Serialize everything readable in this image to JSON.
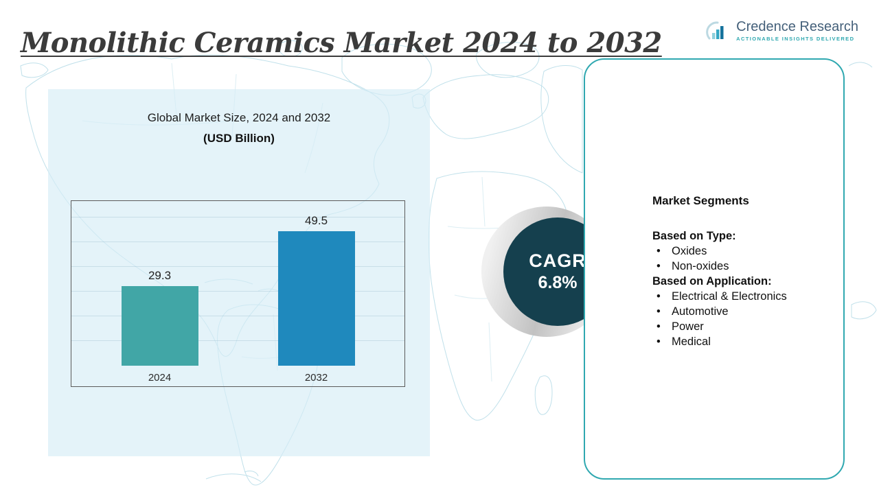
{
  "header": {
    "title": "Monolithic Ceramics Market 2024 to 2032",
    "brand": {
      "name": "Credence Research",
      "tagline": "Actionable Insights Delivered"
    }
  },
  "chart_data": {
    "type": "bar",
    "title": "Global Market Size, 2024 and 2032",
    "subtitle": "(USD Billion)",
    "categories": [
      "2024",
      "2032"
    ],
    "values": [
      29.3,
      49.5
    ],
    "ylim": [
      0,
      55
    ],
    "grid": true,
    "legend": false,
    "bar_colors": [
      "#41a6a6",
      "#1f89bd"
    ]
  },
  "cagr": {
    "label": "CAGR",
    "value": "6.8%"
  },
  "segments": {
    "heading": "Market Segments",
    "groups": [
      {
        "title": "Based on Type:",
        "items": [
          "Oxides",
          "Non-oxides"
        ]
      },
      {
        "title": "Based on Application:",
        "items": [
          "Electrical & Electronics",
          "Automotive",
          "Power",
          "Medical"
        ]
      }
    ]
  },
  "colors": {
    "accent_teal": "#2fa8b0",
    "bar_2024": "#41a6a6",
    "bar_2032": "#1f89bd",
    "cagr_circle": "#15404e",
    "panel_bg": "#d6ecf6",
    "map_line": "#b9dde8",
    "title_text": "#3b3b3b",
    "brand_text": "#44607a"
  }
}
